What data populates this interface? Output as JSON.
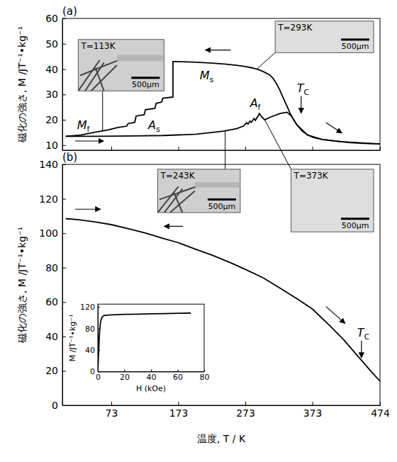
{
  "chart_data": [
    {
      "type": "line",
      "label": "(a)",
      "ylabel": "磁化の強さ, M /JT⁻¹•kg⁻¹",
      "color": "#000000",
      "xlim": [
        0,
        474
      ],
      "xticks": [
        73,
        173,
        273,
        373,
        474
      ],
      "ylim": [
        8,
        60
      ],
      "yticks": [
        10,
        20,
        30,
        40,
        50,
        60
      ],
      "tick_labels": "y",
      "series": [
        {
          "x": [
            474,
            450,
            430,
            418,
            400,
            387,
            375,
            366,
            358,
            350,
            345,
            340,
            335,
            329,
            324,
            319,
            314,
            309,
            300,
            294,
            283,
            273,
            260,
            242,
            220,
            200,
            180,
            168,
            165,
            165,
            150,
            150,
            148,
            140,
            140,
            138,
            124,
            122,
            110,
            108,
            98,
            96,
            83,
            68,
            47,
            27,
            5
          ],
          "values": [
            10.5,
            10.7,
            11,
            11.3,
            11.8,
            12.3,
            13,
            14,
            15.5,
            18,
            20,
            22.5,
            25.5,
            29,
            32,
            34.5,
            36.5,
            37.8,
            39,
            39.7,
            40.5,
            41,
            41.5,
            42,
            42.4,
            42.7,
            42.9,
            43,
            43,
            29,
            28.5,
            28.5,
            27,
            26.5,
            26.5,
            24.5,
            24,
            22,
            21.5,
            19,
            18.5,
            17.5,
            17,
            16,
            15,
            14,
            13.5
          ]
        },
        {
          "x": [
            5,
            50,
            100,
            150,
            200,
            240,
            260,
            270,
            275,
            277,
            280,
            282,
            286,
            288,
            292,
            294,
            298,
            302,
            310,
            325,
            335,
            342,
            350,
            366,
            387,
            418,
            474
          ],
          "values": [
            13.5,
            13.5,
            13.6,
            13.8,
            14.3,
            15.5,
            16.5,
            17.5,
            18.8,
            18.3,
            19.5,
            19,
            20.5,
            19.8,
            21.5,
            22.5,
            21,
            20,
            21,
            22.5,
            23,
            21.5,
            18,
            14,
            12.3,
            11.3,
            10.5
          ]
        }
      ],
      "annotations": [
        {
          "text": "Mf",
          "x": 22,
          "y": 16.5
        },
        {
          "text": "Ms",
          "x": 205,
          "y": 36
        },
        {
          "text": "As",
          "x": 128,
          "y": 16.5
        },
        {
          "text": "Af",
          "x": 280,
          "y": 25
        },
        {
          "text": "TC",
          "x": 350,
          "y": 31
        }
      ],
      "images": [
        {
          "label": "T=293K",
          "scale_bar": "500μm",
          "x": 290,
          "y": 40
        },
        {
          "label": "T=113K",
          "scale_bar": "500μm",
          "x": 60,
          "y": 15.7
        },
        {
          "label": "T=243K",
          "scale_bar": "500μm",
          "x": 243,
          "y": 15.6
        },
        {
          "label": "T=373K",
          "scale_bar": "500μm",
          "x": 302,
          "y": 20
        }
      ]
    },
    {
      "type": "line",
      "label": "(b)",
      "xlabel": "温度, T / K",
      "ylabel": "磁化の強さ, M /JT⁻¹•kg⁻¹",
      "color": "#000000",
      "xlim": [
        0,
        474
      ],
      "xticks": [
        73,
        173,
        273,
        373,
        474
      ],
      "ylim": [
        0,
        140
      ],
      "yticks": [
        0,
        20,
        40,
        60,
        80,
        100,
        120,
        140
      ],
      "series": [
        {
          "x": [
            5,
            25,
            50,
            73,
            100,
            125,
            150,
            173,
            200,
            225,
            250,
            273,
            300,
            325,
            350,
            373,
            400,
            420,
            440,
            460,
            474
          ],
          "values": [
            108.5,
            107.8,
            106.5,
            105,
            102.5,
            100,
            97,
            94.5,
            90.5,
            87,
            83,
            79,
            74,
            68,
            62,
            56,
            46,
            38,
            29,
            20,
            14
          ]
        }
      ],
      "annotations": [
        {
          "text": "TC",
          "x": 440,
          "y": 40
        }
      ],
      "inset": {
        "type": "line",
        "xlabel": "H (kOe)",
        "ylabel": "M /JT⁻¹•kg⁻¹",
        "xlim": [
          0,
          80
        ],
        "xticks": [
          0,
          20,
          40,
          60,
          80
        ],
        "ylim": [
          0,
          125
        ],
        "yticks": [
          0,
          40,
          80,
          120
        ],
        "series": [
          {
            "x": [
              0,
              0.5,
              1,
              1.5,
              2,
              3,
              4,
              5,
              10,
              20,
              30,
              40,
              50,
              60,
              70
            ],
            "values": [
              0,
              30,
              60,
              80,
              92,
              100,
              103,
              104,
              105,
              106,
              106.5,
              107,
              107.5,
              108,
              108.5
            ]
          }
        ]
      }
    }
  ]
}
